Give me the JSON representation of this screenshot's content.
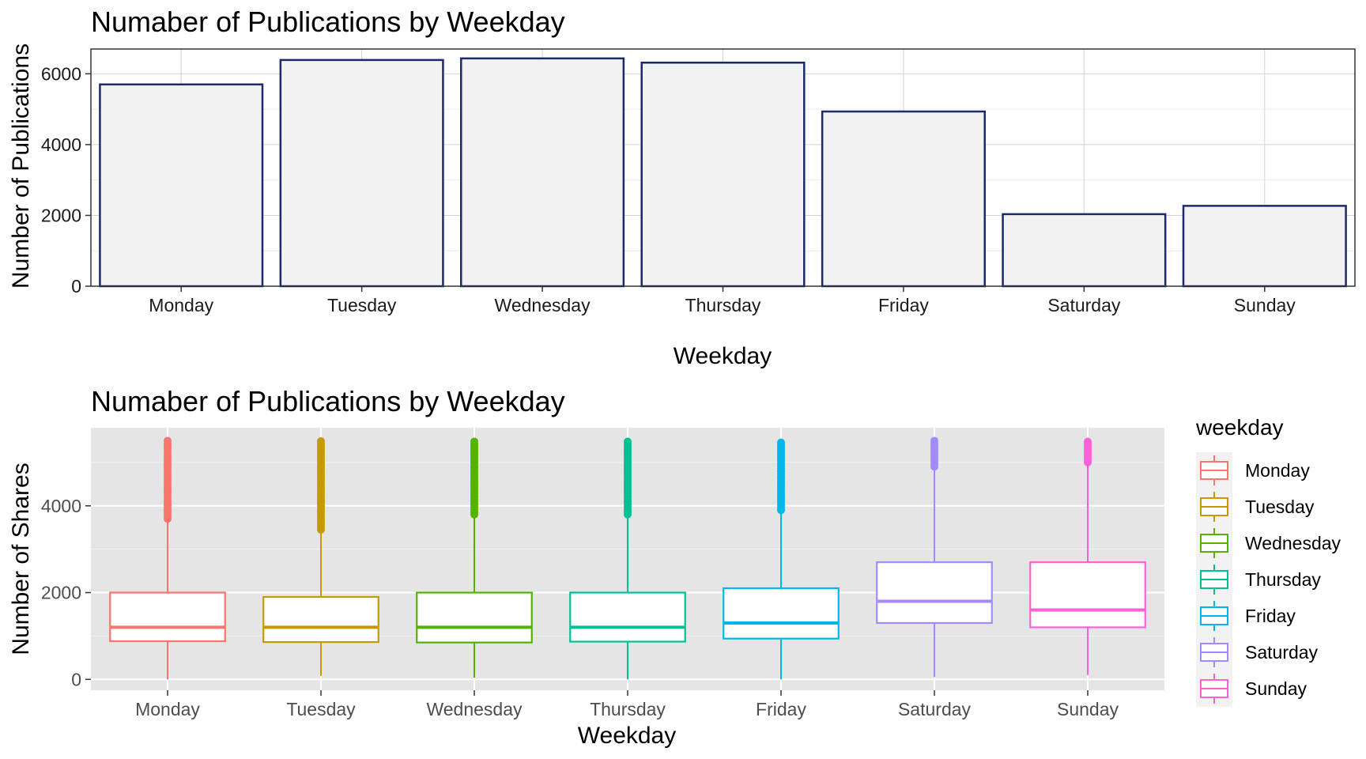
{
  "chart_data": [
    {
      "type": "bar",
      "title": "Numaber of Publications by Weekday",
      "xlabel": "Weekday",
      "ylabel": "Number of Publications",
      "categories": [
        "Monday",
        "Tuesday",
        "Wednesday",
        "Thursday",
        "Friday",
        "Saturday",
        "Sunday"
      ],
      "values": [
        5700,
        6390,
        6435,
        6315,
        4935,
        2035,
        2270
      ],
      "ylim": [
        0,
        6700
      ],
      "yticks": [
        0,
        2000,
        4000,
        6000
      ],
      "grid": true,
      "colors": {
        "fill": "#F2F2F2",
        "stroke": "#1A2A6C",
        "panel_border": "#333333",
        "grid": "#D3D3D3"
      }
    },
    {
      "type": "box",
      "title": "Numaber of Publications by Weekday",
      "xlabel": "Weekday",
      "ylabel": "Number of Shares",
      "categories": [
        "Monday",
        "Tuesday",
        "Wednesday",
        "Thursday",
        "Friday",
        "Saturday",
        "Sunday"
      ],
      "ylim": [
        -250,
        5800
      ],
      "yticks": [
        0,
        2000,
        4000
      ],
      "grid": true,
      "legend": {
        "title": "weekday",
        "position": "right"
      },
      "series": [
        {
          "name": "Monday",
          "color": "#F8766D",
          "min": 0,
          "q1": 880,
          "median": 1200,
          "q3": 2000,
          "whisker_high": 3700,
          "outliers_from": 3700,
          "outliers_to": 5500
        },
        {
          "name": "Tuesday",
          "color": "#C49A00",
          "min": 80,
          "q1": 860,
          "median": 1200,
          "q3": 1900,
          "whisker_high": 3450,
          "outliers_from": 3450,
          "outliers_to": 5500
        },
        {
          "name": "Wednesday",
          "color": "#53B400",
          "min": 40,
          "q1": 850,
          "median": 1200,
          "q3": 2000,
          "whisker_high": 3800,
          "outliers_from": 3800,
          "outliers_to": 5500
        },
        {
          "name": "Thursday",
          "color": "#00C094",
          "min": 0,
          "q1": 870,
          "median": 1200,
          "q3": 2000,
          "whisker_high": 3800,
          "outliers_from": 3800,
          "outliers_to": 5500
        },
        {
          "name": "Friday",
          "color": "#00B6EB",
          "min": 0,
          "q1": 940,
          "median": 1300,
          "q3": 2100,
          "whisker_high": 3900,
          "outliers_from": 3900,
          "outliers_to": 5500
        },
        {
          "name": "Saturday",
          "color": "#A58AFF",
          "min": 50,
          "q1": 1300,
          "median": 1800,
          "q3": 2700,
          "whisker_high": 4900,
          "outliers_from": 4900,
          "outliers_to": 5500
        },
        {
          "name": "Sunday",
          "color": "#FB61D7",
          "min": 100,
          "q1": 1200,
          "median": 1600,
          "q3": 2700,
          "whisker_high": 5000,
          "outliers_from": 5000,
          "outliers_to": 5500
        }
      ],
      "colors": {
        "panel_bg": "#E5E5E5",
        "grid": "#FFFFFF"
      }
    }
  ]
}
